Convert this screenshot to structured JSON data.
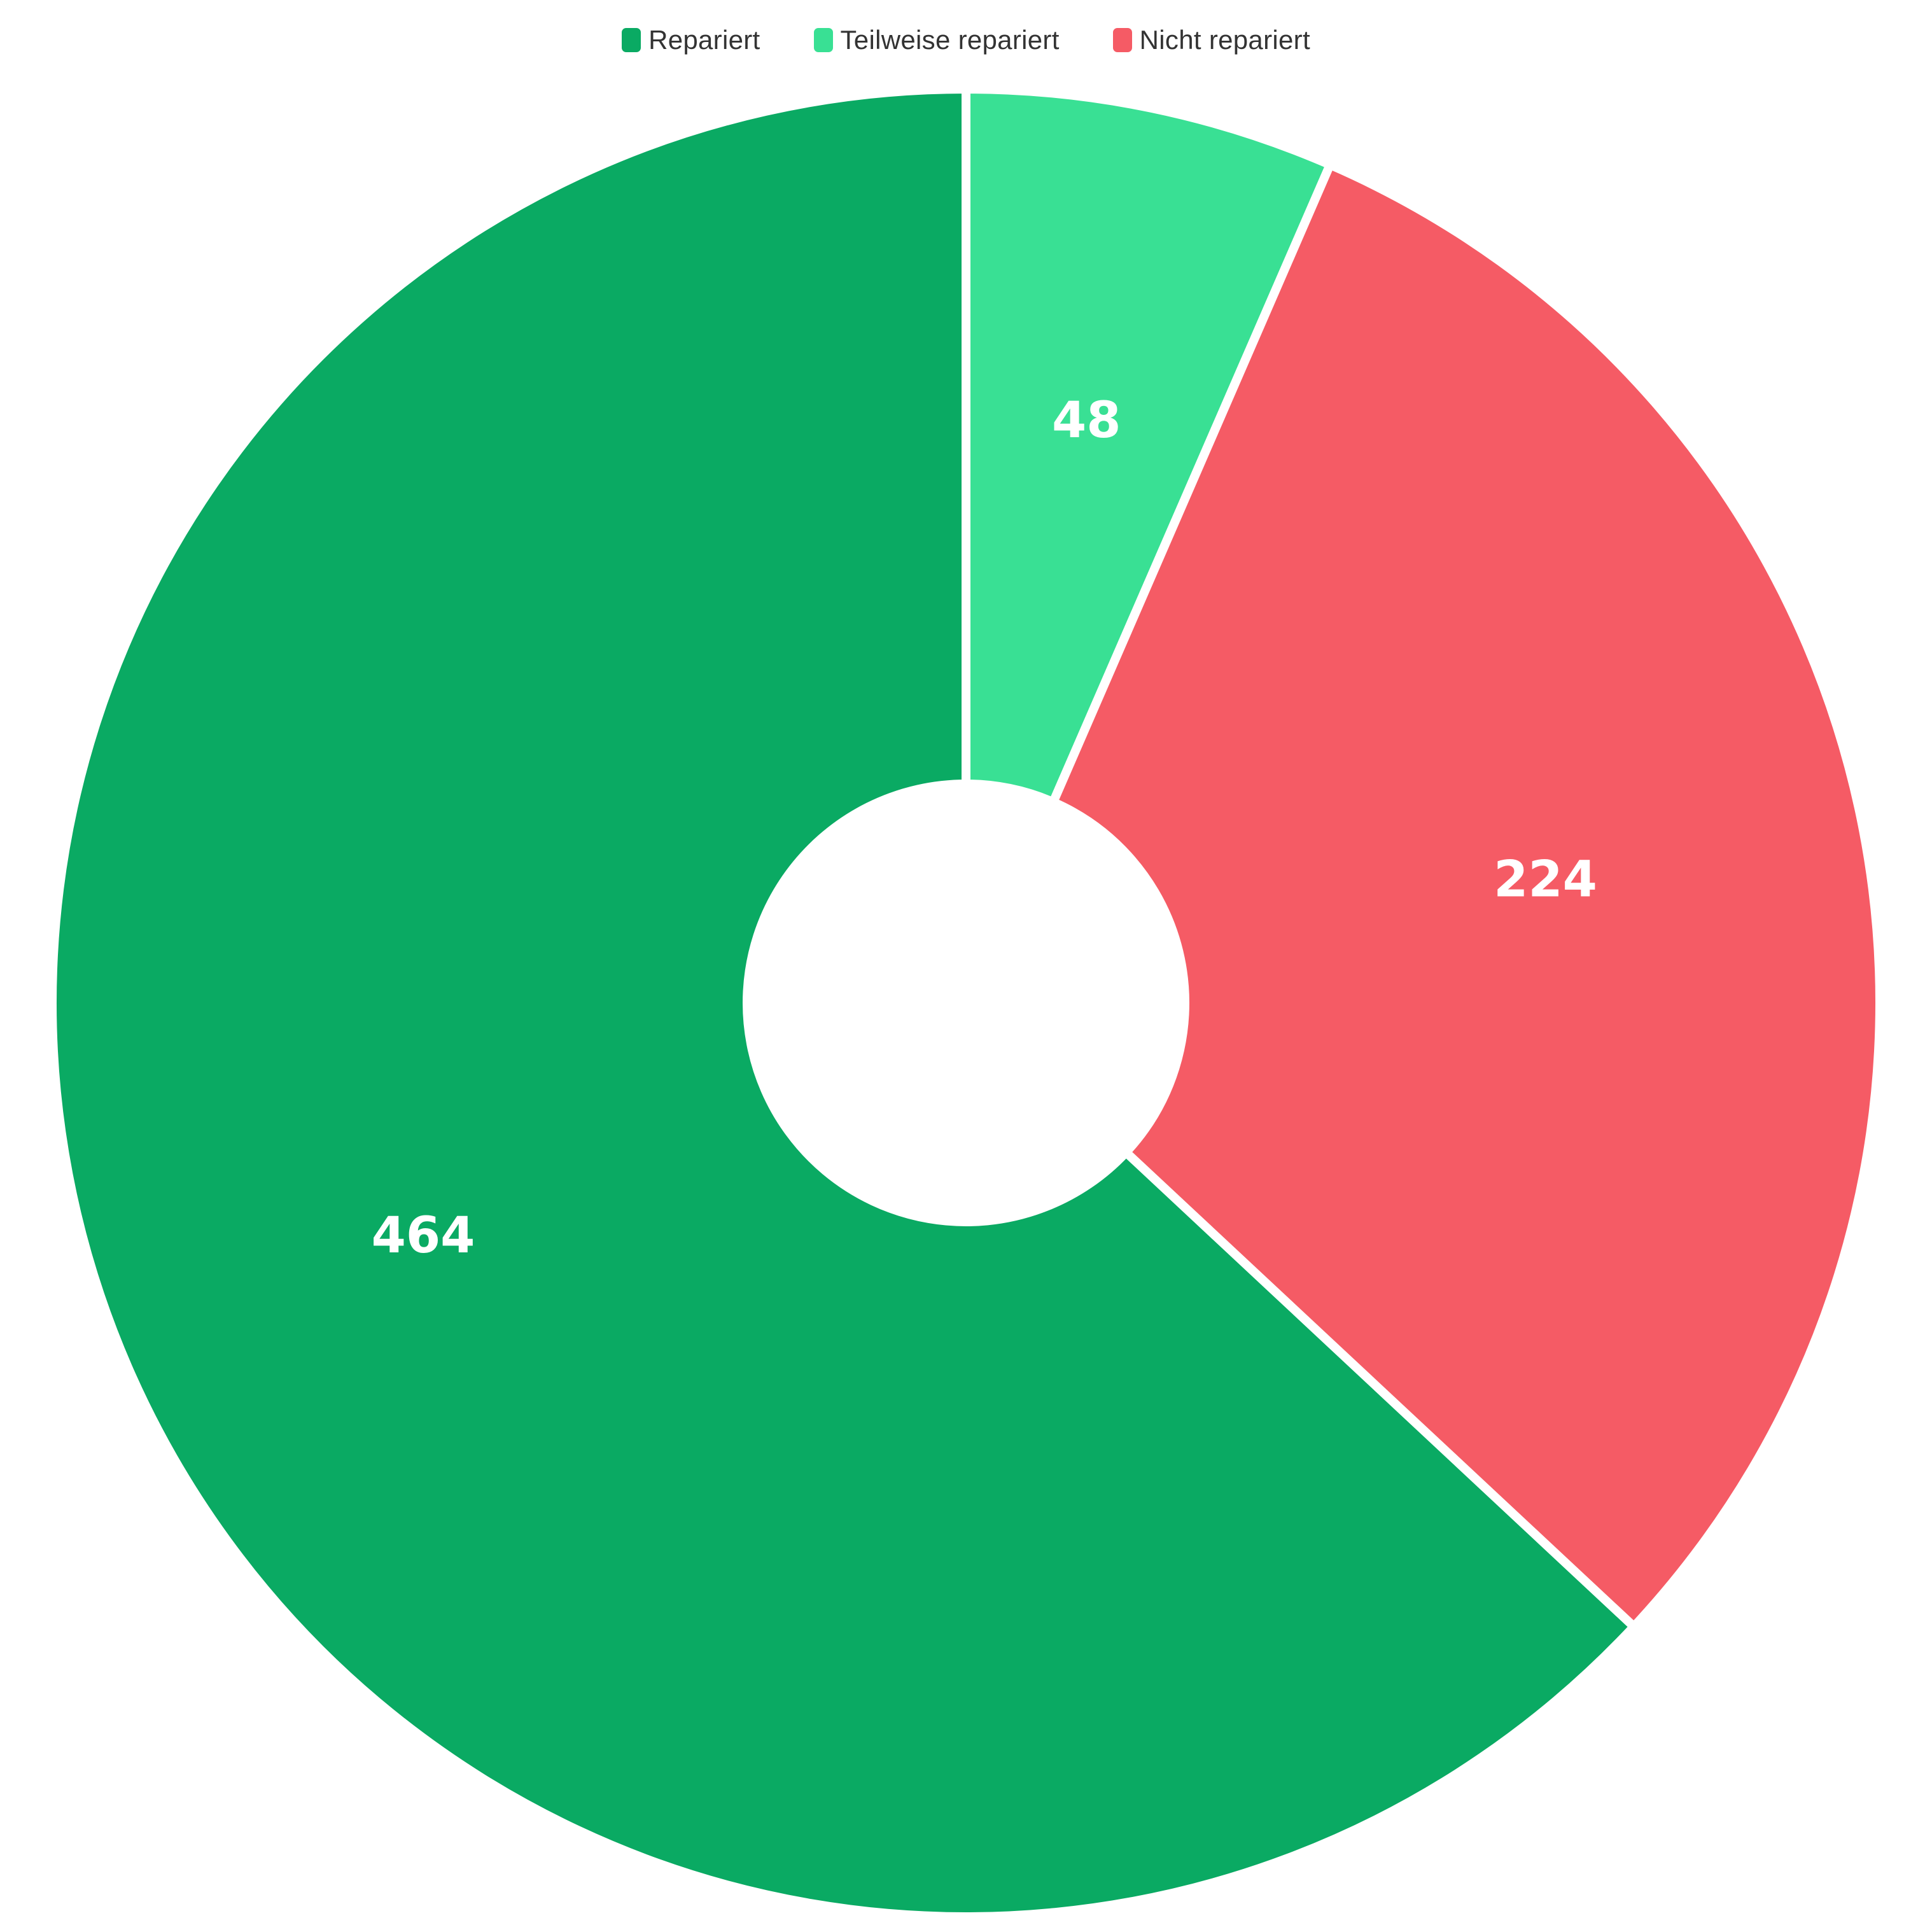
{
  "chart_data": {
    "type": "pie",
    "title": "",
    "donut": true,
    "legend_position": "top-center",
    "categories": [
      "Repariert",
      "Teilweise repariert",
      "Nicht repariert"
    ],
    "values": [
      464,
      48,
      224
    ],
    "colors": [
      "#0aaa63",
      "#39e094",
      "#f55b65"
    ],
    "data_labels": [
      "464",
      "48",
      "224"
    ]
  }
}
